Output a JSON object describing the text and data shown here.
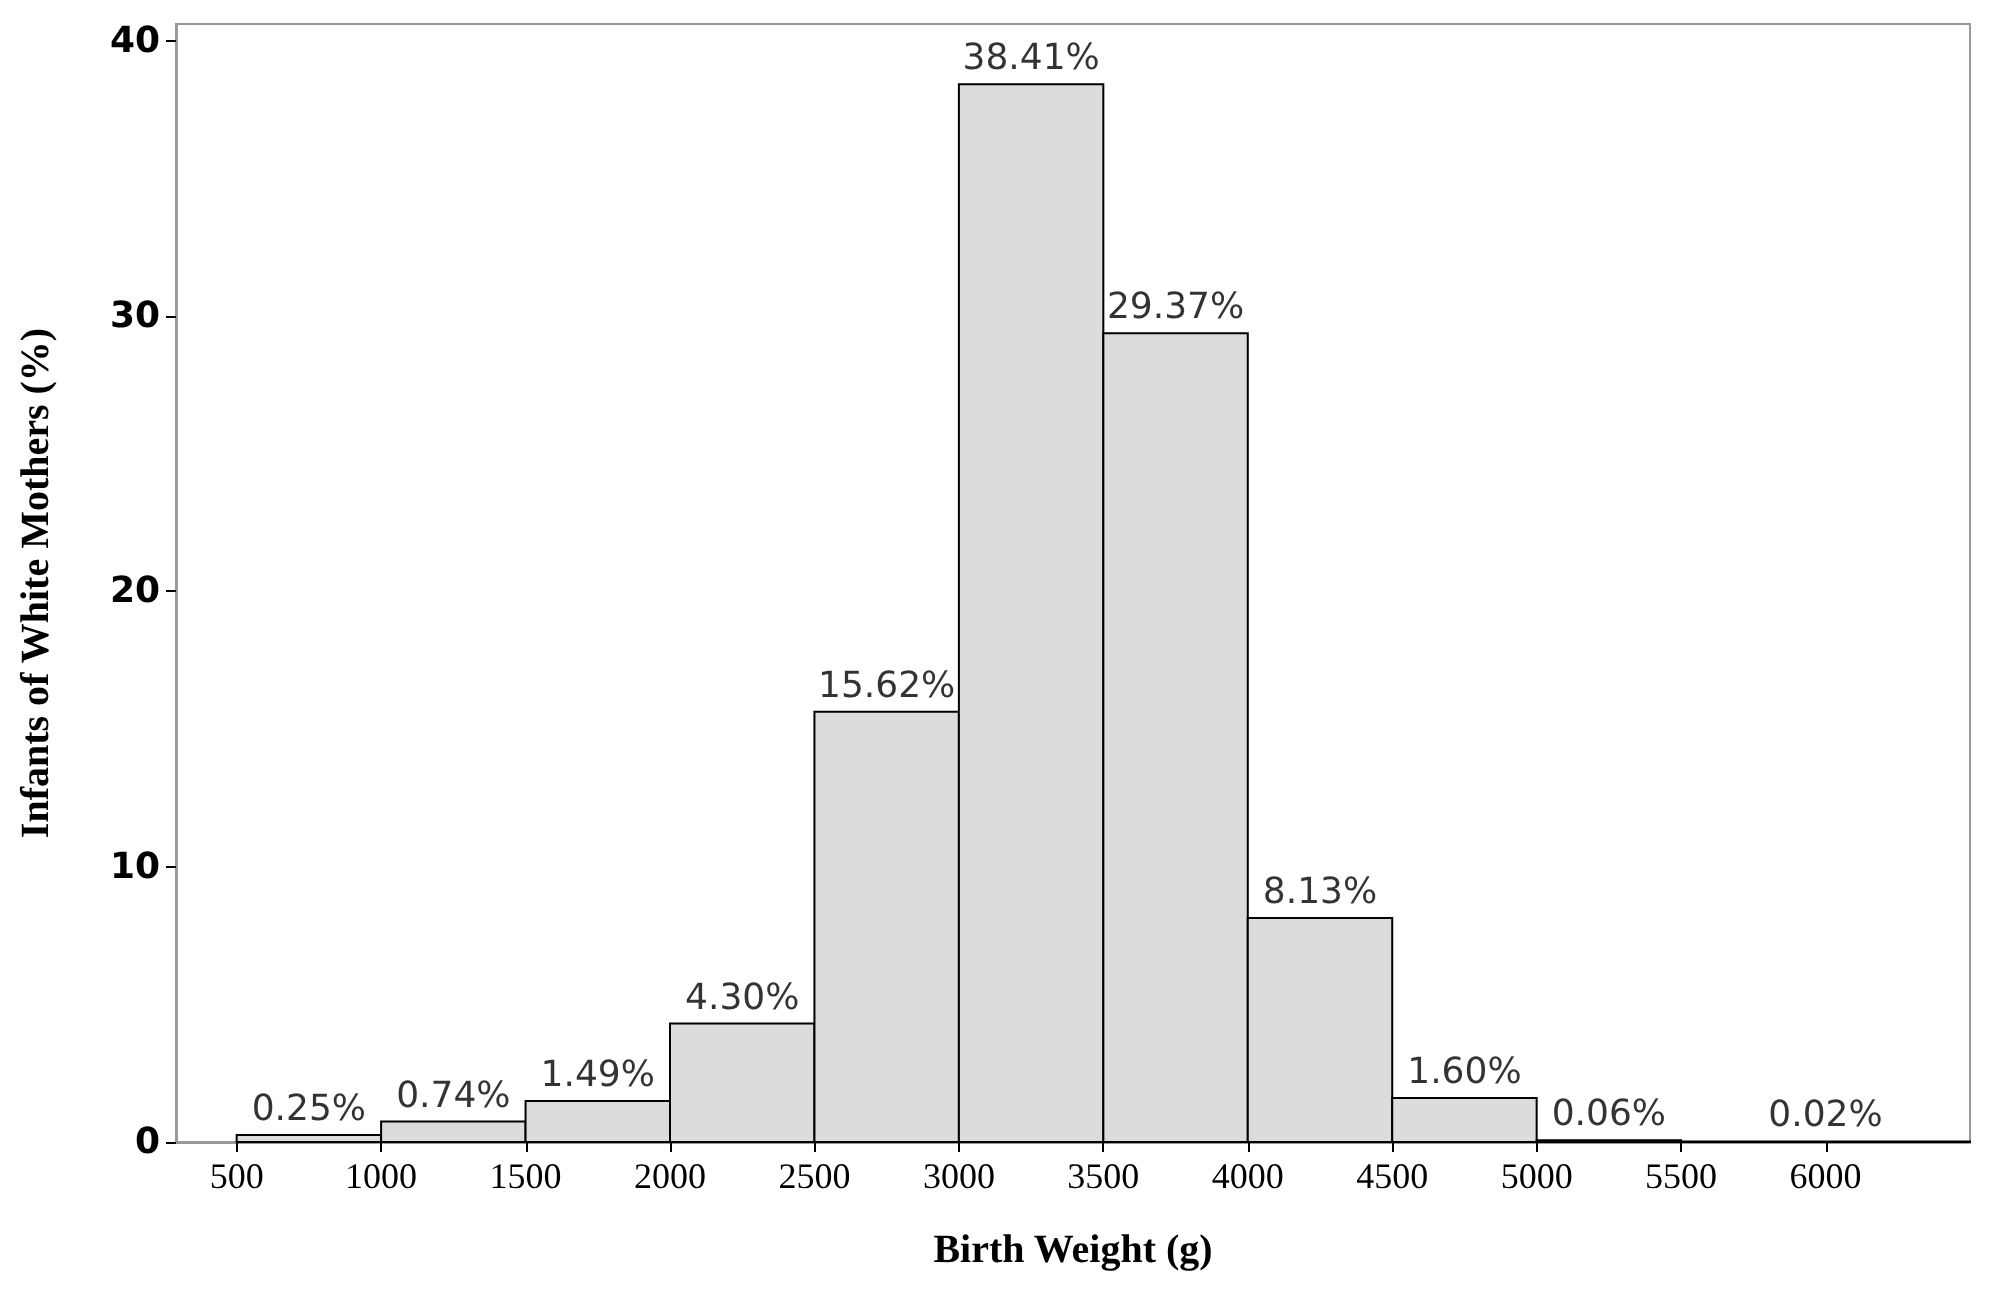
{
  "chart_data": {
    "type": "histogram",
    "xlabel": "Birth Weight (g)",
    "ylabel": "Infants of White Mothers (%)",
    "bins": [
      500,
      1000,
      1500,
      2000,
      2500,
      3000,
      3500,
      4000,
      4500,
      5000,
      5500,
      6500
    ],
    "values": [
      0.25,
      0.74,
      1.49,
      4.3,
      15.62,
      38.41,
      29.37,
      8.13,
      1.6,
      0.06,
      0.02
    ],
    "value_labels": [
      "0.25%",
      "0.74%",
      "1.49%",
      "4.30%",
      "15.62%",
      "38.41%",
      "29.37%",
      "8.13%",
      "1.60%",
      "0.06%",
      "0.02%"
    ],
    "color": "#dcdcdc",
    "xlim": [
      290,
      6500
    ],
    "xticks": [
      500,
      1000,
      1500,
      2000,
      2500,
      3000,
      3500,
      4000,
      4500,
      5000,
      5500,
      6000
    ],
    "ylim": [
      0,
      40.6
    ],
    "yticks": [
      0,
      10,
      20,
      30,
      40
    ],
    "grid": false
  }
}
